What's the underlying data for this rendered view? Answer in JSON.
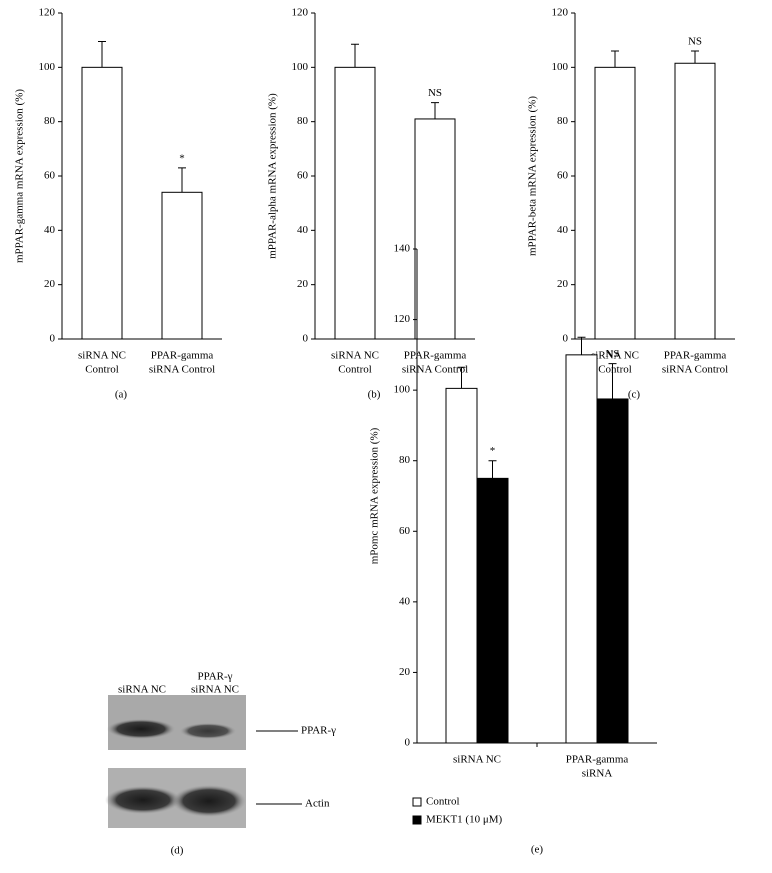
{
  "chart_data": [
    {
      "type": "bar",
      "label": "(a)",
      "ylabel": "mPPAR-gamma mRNA expression (%)",
      "categories": [
        [
          "siRNA NC",
          "Control"
        ],
        [
          "PPAR-gamma",
          "siRNA Control"
        ]
      ],
      "values": [
        100,
        54
      ],
      "errors": [
        9.5,
        9
      ],
      "color": "#ffffff",
      "annotations": [
        "*"
      ],
      "ylim": [
        0,
        120
      ],
      "yticks": [
        0,
        20,
        40,
        60,
        80,
        100,
        120
      ]
    },
    {
      "type": "bar",
      "label": "(b)",
      "ylabel": "mPPAR-alpha mRNA expression (%)",
      "categories": [
        [
          "siRNA NC",
          "Control"
        ],
        [
          "PPAR-gamma",
          "siRNA Control"
        ]
      ],
      "values": [
        100,
        81
      ],
      "errors": [
        8.5,
        6
      ],
      "color": "#ffffff",
      "annotations": [
        "NS"
      ],
      "ylim": [
        0,
        120
      ],
      "yticks": [
        0,
        20,
        40,
        60,
        80,
        100,
        120
      ]
    },
    {
      "type": "bar",
      "label": "(c)",
      "ylabel": "mPPAR-beta mRNA expression (%)",
      "categories": [
        [
          "siRNA NC",
          "Control"
        ],
        [
          "PPAR-gamma",
          "siRNA Control"
        ]
      ],
      "values": [
        100,
        101.5
      ],
      "errors": [
        6,
        4.5
      ],
      "color": "#ffffff",
      "annotations": [
        "NS"
      ],
      "ylim": [
        0,
        120
      ],
      "yticks": [
        0,
        20,
        40,
        60,
        80,
        100,
        120
      ]
    },
    {
      "type": "bar",
      "label": "(e)",
      "ylabel": "mPomc mRNA expression (%)",
      "categories": [
        [
          "siRNA NC"
        ],
        [
          "PPAR-gamma",
          "siRNA"
        ]
      ],
      "series": [
        {
          "name": "Control",
          "color": "#ffffff",
          "values": [
            100.5,
            110
          ],
          "errors": [
            6,
            5
          ]
        },
        {
          "name": "MEKT1 (10 μM)",
          "color": "#000000",
          "values": [
            75,
            97.5
          ],
          "errors": [
            5,
            10
          ]
        }
      ],
      "annotations": [
        "*",
        "NS"
      ],
      "ylim": [
        0,
        140
      ],
      "yticks": [
        0,
        20,
        40,
        60,
        80,
        100,
        120,
        140
      ]
    }
  ],
  "blot": {
    "lane_labels": [
      "siRNA NC",
      "PPAR-γ",
      "siRNA NC"
    ],
    "bands": [
      "PPAR-γ",
      "Actin"
    ],
    "label": "(d)"
  }
}
